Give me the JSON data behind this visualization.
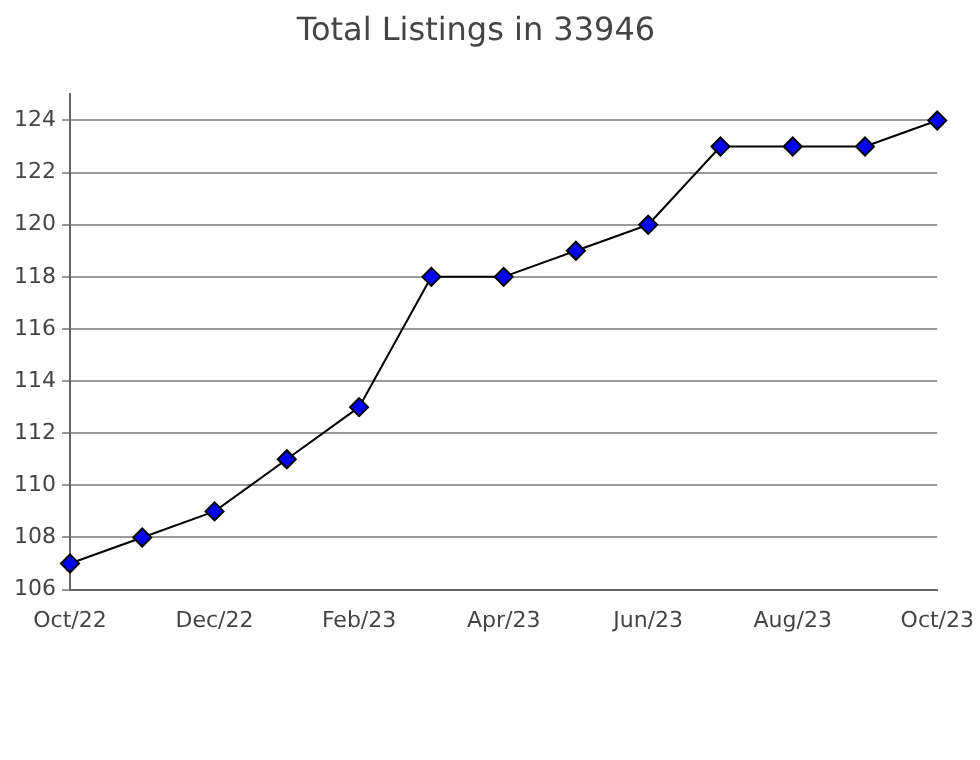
{
  "chart_data": {
    "type": "line",
    "title": "Total Listings in 33946",
    "categories": [
      "Oct/22",
      null,
      "Dec/22",
      null,
      "Feb/23",
      null,
      "Apr/23",
      null,
      "Jun/23",
      null,
      "Aug/23",
      null,
      "Oct/23"
    ],
    "series": [
      {
        "color": "#0000ff",
        "values": [
          107,
          108,
          109,
          111,
          113,
          118,
          118,
          119,
          120,
          123,
          123,
          123,
          124
        ]
      }
    ],
    "ylim": [
      106,
      125
    ],
    "yticks": [
      106,
      108,
      110,
      112,
      114,
      116,
      118,
      120,
      122,
      124
    ],
    "grid": "y",
    "legend": false,
    "marker": "diamond",
    "line_style": "solid"
  }
}
